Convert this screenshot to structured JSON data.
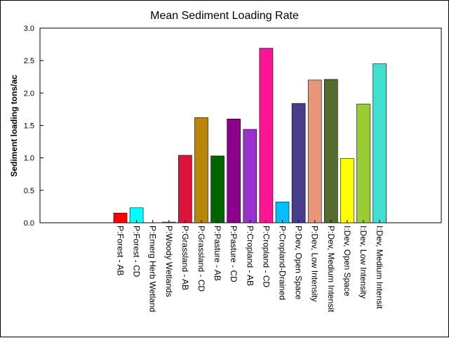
{
  "chart_data": {
    "type": "bar",
    "title": "Mean Sediment Loading Rate",
    "xlabel": "",
    "ylabel": "Sediment loading tons/ac",
    "ylim": [
      0,
      3.0
    ],
    "yticks": [
      "0.0",
      "0.5",
      "1.0",
      "1.5",
      "2.0",
      "2.5",
      "3.0"
    ],
    "grid": false,
    "legend": "none",
    "categories": [
      "P:Forest - AB",
      "P:Forest - CD",
      "P:Emerg Herb Wetland",
      "P:Woody Wetlands",
      "P:Grassland - AB",
      "P:Grassland - CD",
      "P:Pasture - AB",
      "P:Pasture - CD",
      "P:Cropland - AB",
      "P:Cropland - CD",
      "P:Cropland-Drained",
      "P:Dev, Open Space",
      "P:Dev, Low Intensity",
      "P:Dev, Medium Intensit",
      "I:Dev, Open Space",
      "I:Dev, Low Intensity",
      "I:Dev, Medium Intensit"
    ],
    "values": [
      0.15,
      0.23,
      0.0,
      0.01,
      1.04,
      1.62,
      1.03,
      1.6,
      1.44,
      2.69,
      0.32,
      1.84,
      2.2,
      2.21,
      0.99,
      1.83,
      2.45
    ],
    "colors": [
      "#ff0000",
      "#00ffff",
      "#ffffff",
      "#808080",
      "#dc143c",
      "#b8860b",
      "#006400",
      "#8b008b",
      "#9932cc",
      "#ff1493",
      "#00bfff",
      "#483d8b",
      "#e9967a",
      "#556b2f",
      "#ffff00",
      "#9acd32",
      "#40e0d0"
    ]
  }
}
